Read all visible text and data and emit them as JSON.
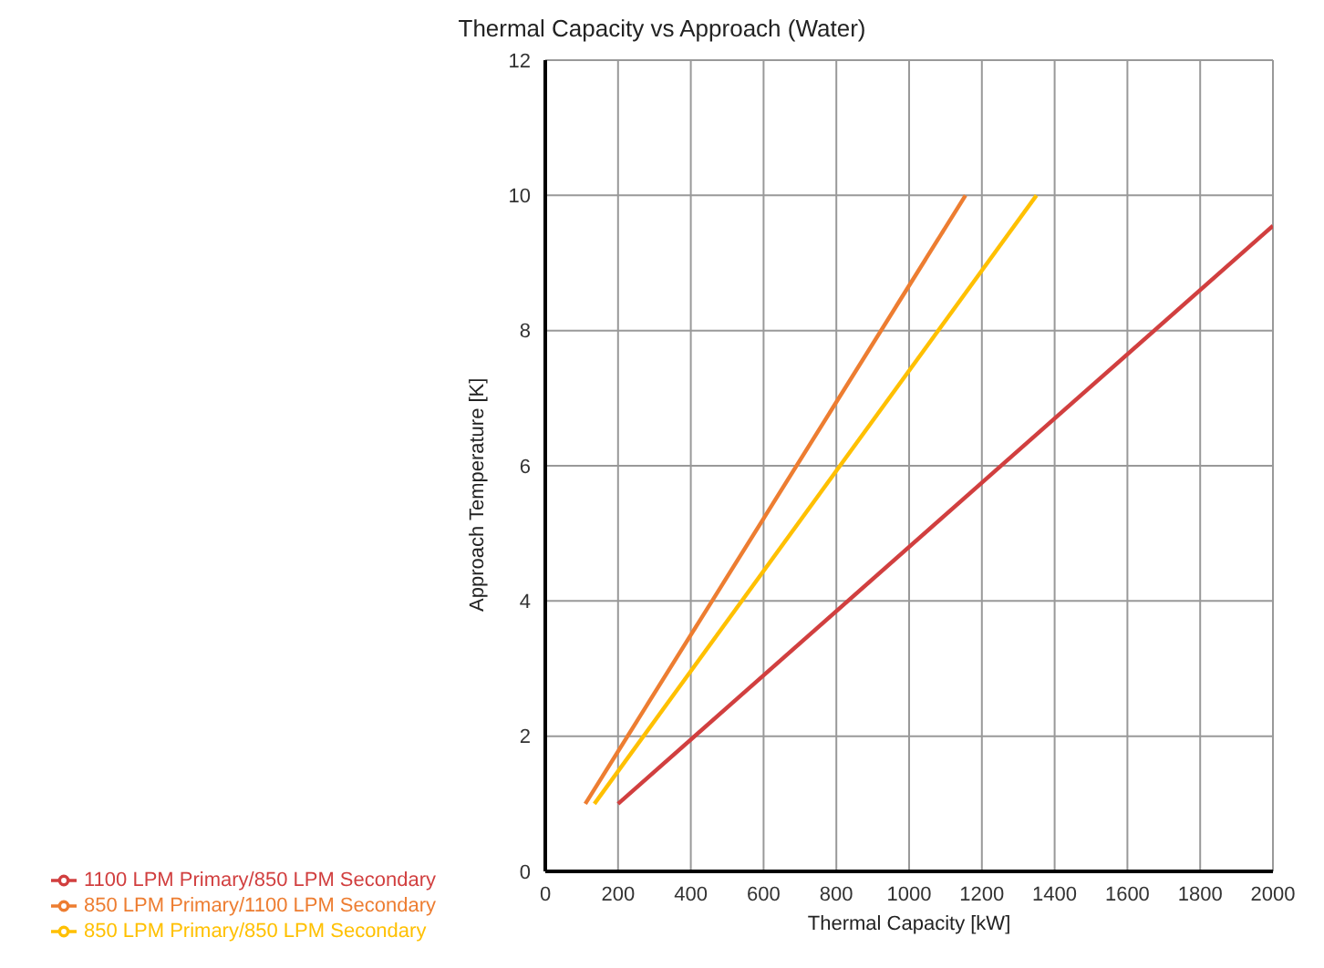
{
  "chart_data": {
    "type": "line",
    "title": "Thermal Capacity vs Approach (Water)",
    "xlabel": "Thermal Capacity [kW]",
    "ylabel": "Approach Temperature [K]",
    "xlim": [
      0,
      2000
    ],
    "xticks": [
      0,
      200,
      400,
      600,
      800,
      1000,
      1200,
      1400,
      1600,
      1800,
      2000
    ],
    "ylim": [
      0,
      12
    ],
    "yticks": [
      0,
      2,
      4,
      6,
      8,
      10,
      12
    ],
    "grid": true,
    "legend": "bottom left",
    "marker": "none",
    "line_style": "solid",
    "series": [
      {
        "name": "850 LPM Primary/850 LPM Secondary",
        "color": "#ffc000",
        "x": [
          135,
          1350
        ],
        "values": [
          1,
          10
        ]
      },
      {
        "name": "850 LPM Primary/1100 LPM Secondary",
        "color": "#ed7d31",
        "x": [
          110,
          1155
        ],
        "values": [
          1,
          10
        ]
      },
      {
        "name": "1100 LPM Primary/850 LPM Secondary",
        "color": "#d13f3f",
        "x": [
          200,
          2000
        ],
        "values": [
          1,
          9.55
        ]
      }
    ]
  }
}
